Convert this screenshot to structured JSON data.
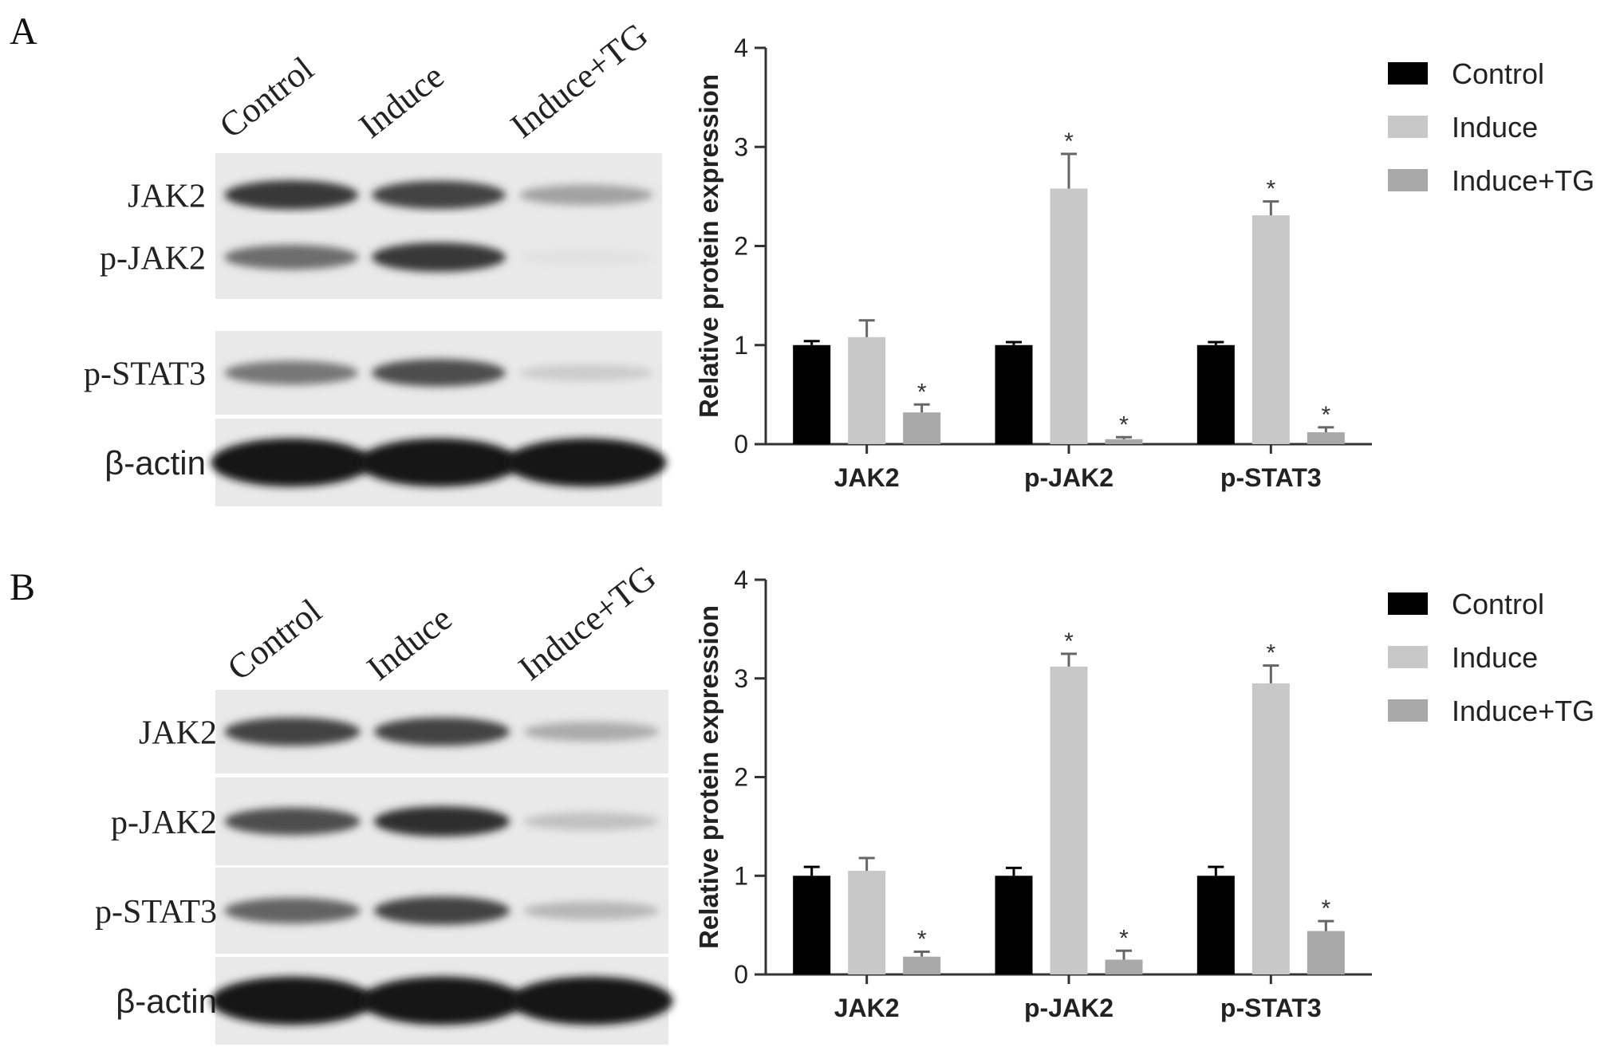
{
  "figure": {
    "panels": [
      {
        "label": "A",
        "blot": {
          "lanes": [
            "Control",
            "Induce",
            "Induce+TG"
          ],
          "rows": [
            {
              "label": "JAK2",
              "intensity": [
                0.85,
                0.8,
                0.35
              ]
            },
            {
              "label": "p-JAK2",
              "intensity": [
                0.6,
                0.85,
                0.05
              ]
            },
            {
              "label": "p-STAT3",
              "intensity": [
                0.55,
                0.75,
                0.15
              ]
            },
            {
              "label": "β-actin",
              "intensity": [
                1.0,
                1.0,
                1.0
              ]
            }
          ]
        }
      },
      {
        "label": "B",
        "blot": {
          "lanes": [
            "Control",
            "Induce",
            "Induce+TG"
          ],
          "rows": [
            {
              "label": "JAK2",
              "intensity": [
                0.8,
                0.8,
                0.3
              ]
            },
            {
              "label": "p-JAK2",
              "intensity": [
                0.75,
                0.9,
                0.2
              ]
            },
            {
              "label": "p-STAT3",
              "intensity": [
                0.65,
                0.8,
                0.25
              ]
            },
            {
              "label": "β-actin",
              "intensity": [
                1.0,
                1.0,
                1.0
              ]
            }
          ]
        }
      }
    ]
  },
  "chart_data": [
    {
      "type": "bar",
      "categories": [
        "JAK2",
        "p-JAK2",
        "p-STAT3"
      ],
      "ylabel": "Relative protein expression",
      "ylim": [
        0,
        4
      ],
      "yticks": [
        "0",
        "1",
        "2",
        "3",
        "4"
      ],
      "legend_position": "right",
      "significance_marker": "*",
      "series": [
        {
          "name": "Control",
          "color": "#000000",
          "values": [
            1.0,
            1.0,
            1.0
          ],
          "errors": [
            0.04,
            0.03,
            0.03
          ],
          "significant": [
            false,
            false,
            false
          ]
        },
        {
          "name": "Induce",
          "color": "#c8c8c8",
          "values": [
            1.08,
            2.58,
            2.31
          ],
          "errors": [
            0.17,
            0.35,
            0.14
          ],
          "significant": [
            false,
            true,
            true
          ]
        },
        {
          "name": "Induce+TG",
          "color": "#a8a8a8",
          "values": [
            0.32,
            0.05,
            0.12
          ],
          "errors": [
            0.08,
            0.02,
            0.05
          ],
          "significant": [
            true,
            true,
            true
          ]
        }
      ]
    },
    {
      "type": "bar",
      "categories": [
        "JAK2",
        "p-JAK2",
        "p-STAT3"
      ],
      "ylabel": "Relative protein expression",
      "ylim": [
        0,
        4
      ],
      "yticks": [
        "0",
        "1",
        "2",
        "3",
        "4"
      ],
      "legend_position": "right",
      "significance_marker": "*",
      "series": [
        {
          "name": "Control",
          "color": "#000000",
          "values": [
            1.0,
            1.0,
            1.0
          ],
          "errors": [
            0.09,
            0.08,
            0.09
          ],
          "significant": [
            false,
            false,
            false
          ]
        },
        {
          "name": "Induce",
          "color": "#c8c8c8",
          "values": [
            1.05,
            3.12,
            2.95
          ],
          "errors": [
            0.13,
            0.13,
            0.18
          ],
          "significant": [
            false,
            true,
            true
          ]
        },
        {
          "name": "Induce+TG",
          "color": "#a8a8a8",
          "values": [
            0.18,
            0.15,
            0.44
          ],
          "errors": [
            0.05,
            0.09,
            0.1
          ],
          "significant": [
            true,
            true,
            true
          ]
        }
      ]
    }
  ]
}
